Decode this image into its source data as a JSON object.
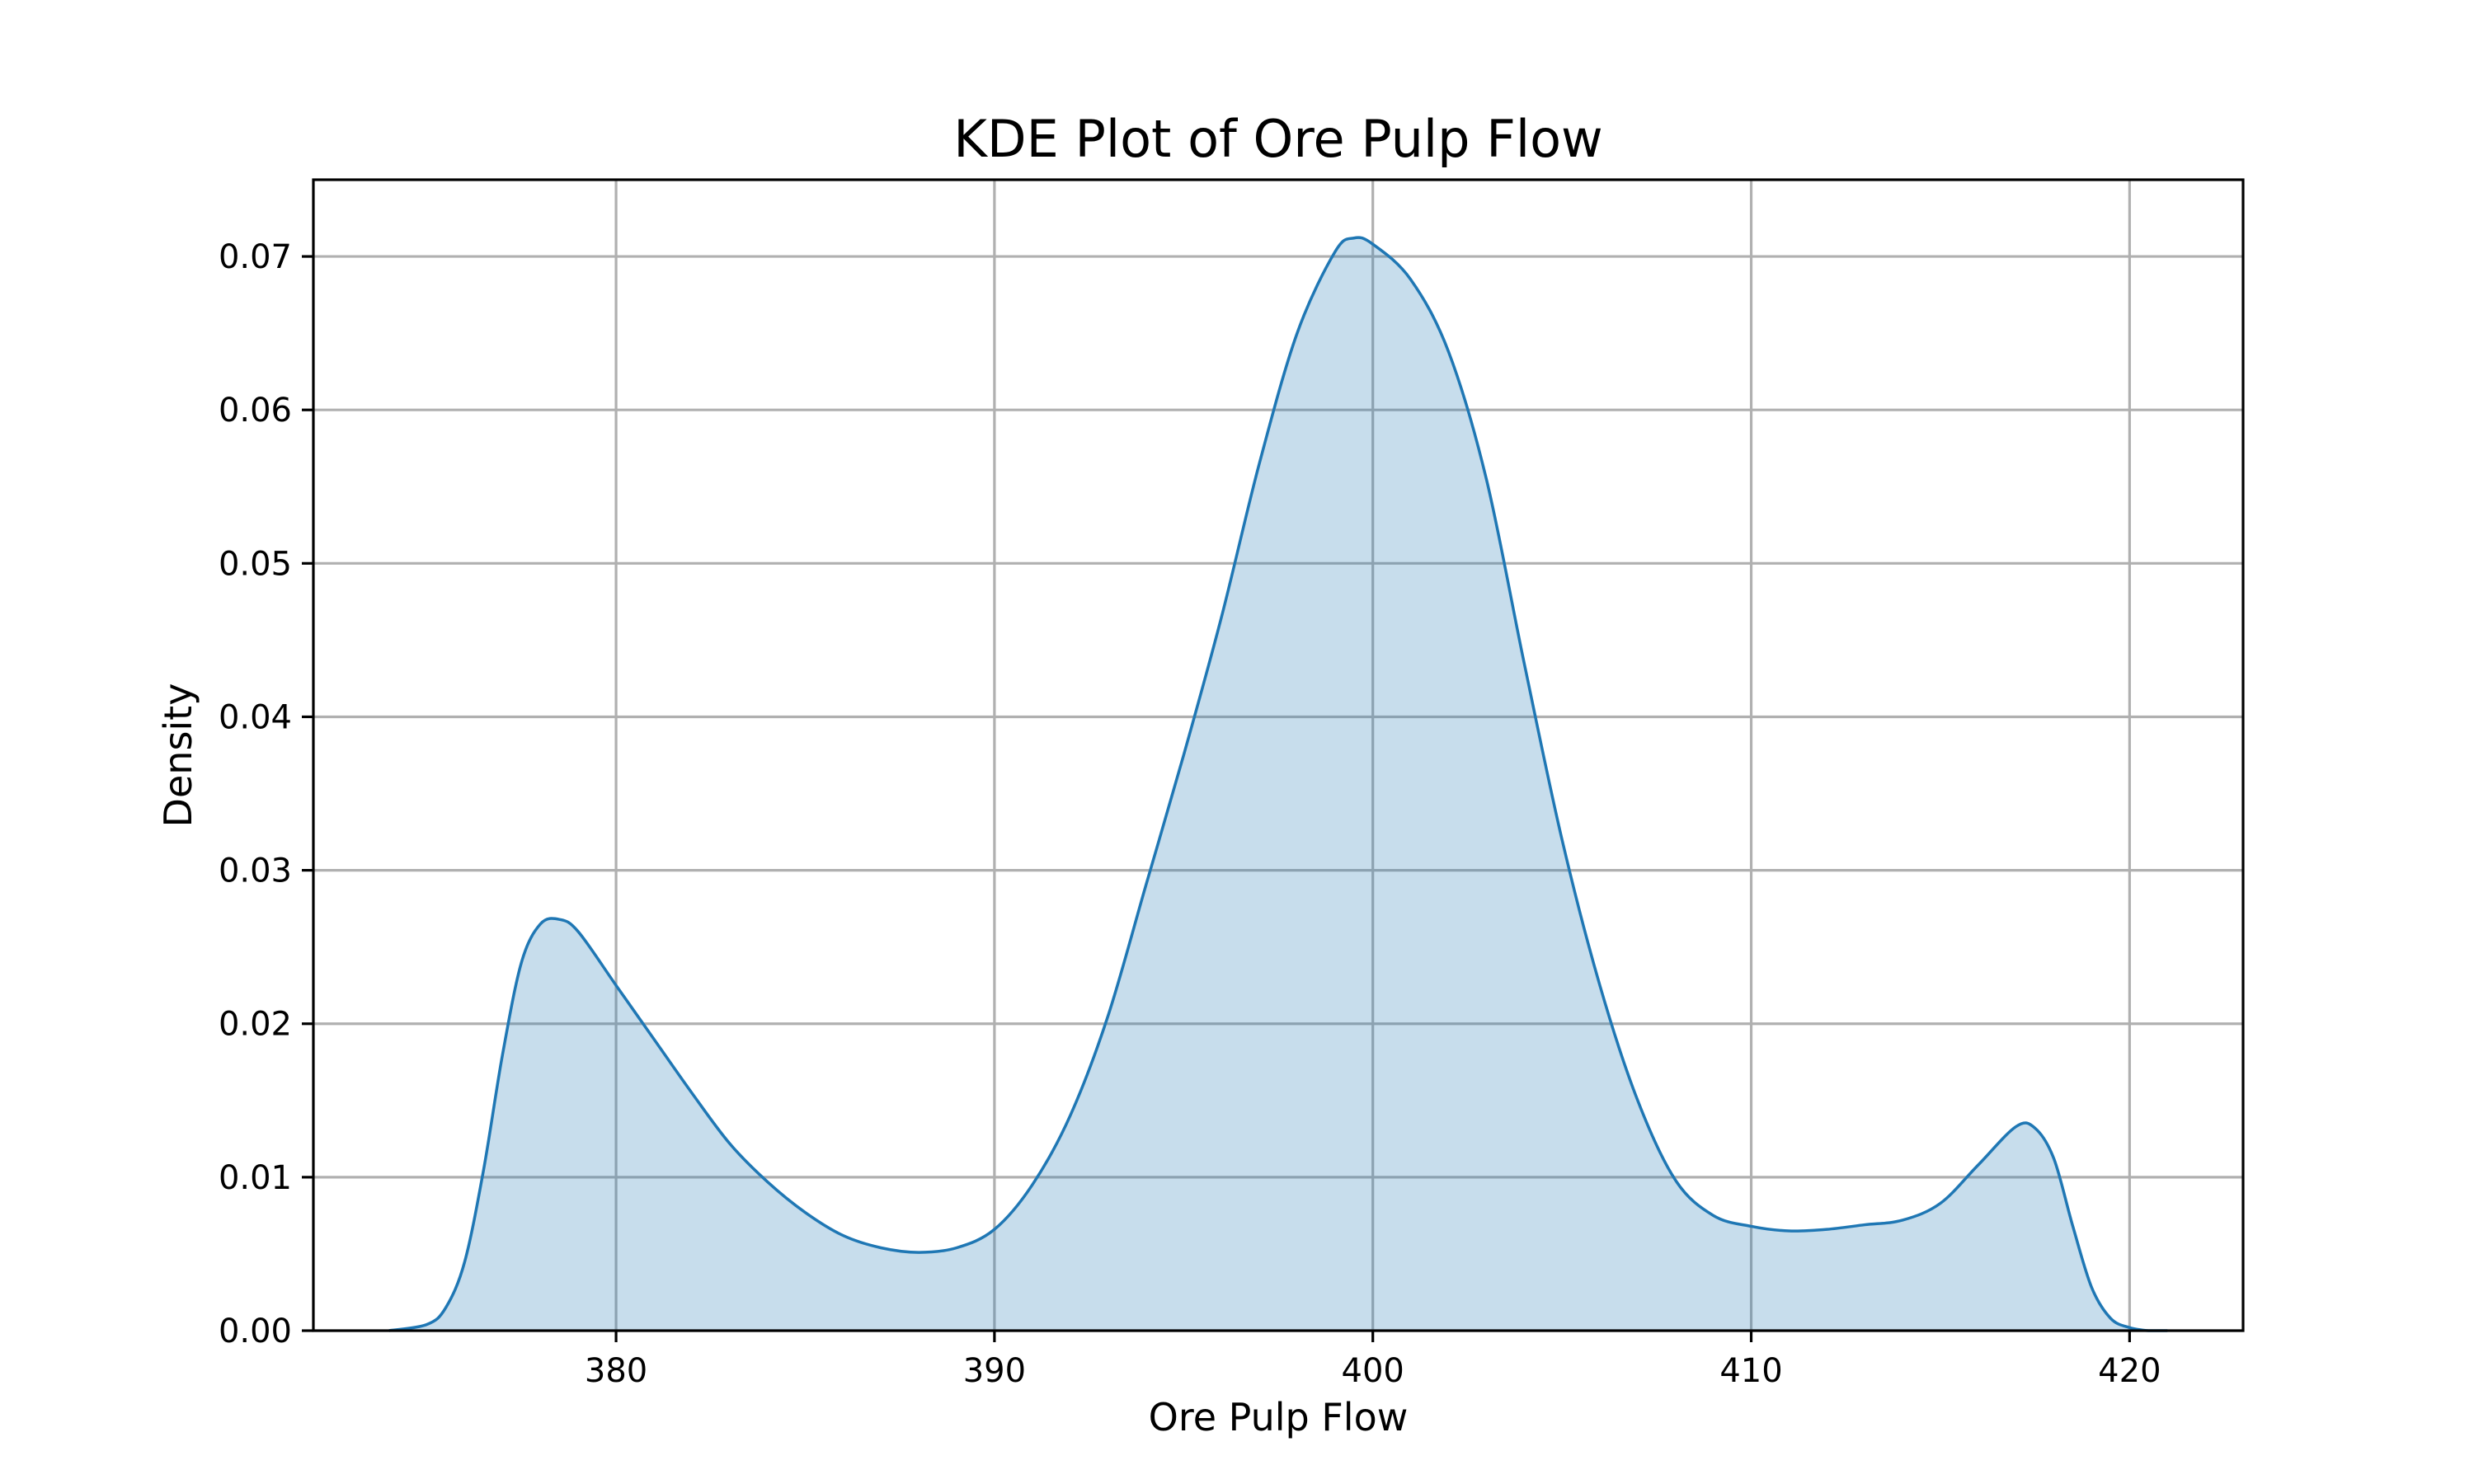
{
  "chart_data": {
    "type": "area",
    "title": "KDE Plot of Ore Pulp Flow",
    "xlabel": "Ore Pulp Flow",
    "ylabel": "Density",
    "xlim": [
      372,
      423
    ],
    "ylim": [
      0,
      0.075
    ],
    "xticks": [
      380,
      390,
      400,
      410,
      420
    ],
    "xtick_labels": [
      "380",
      "390",
      "400",
      "410",
      "420"
    ],
    "yticks": [
      0,
      0.01,
      0.02,
      0.03,
      0.04,
      0.05,
      0.06,
      0.07
    ],
    "ytick_labels": [
      "0.00",
      "0.01",
      "0.02",
      "0.03",
      "0.04",
      "0.05",
      "0.06",
      "0.07"
    ],
    "grid": true,
    "line_color": "#1f77b4",
    "fill_color": "#1f77b4",
    "fill_alpha": 0.25,
    "series": [
      {
        "x": [
          374.0,
          375.0,
          375.5,
          376.0,
          376.5,
          377.0,
          377.5,
          378.0,
          378.5,
          379.0,
          380.0,
          381.0,
          382.0,
          383.0,
          384.0,
          385.0,
          386.0,
          387.0,
          388.0,
          389.0,
          390.0,
          391.0,
          392.0,
          393.0,
          394.0,
          395.0,
          396.0,
          397.0,
          398.0,
          399.0,
          399.5,
          400.0,
          401.0,
          402.0,
          403.0,
          404.0,
          405.0,
          406.0,
          407.0,
          408.0,
          409.0,
          410.0,
          411.0,
          412.0,
          413.0,
          414.0,
          415.0,
          416.0,
          417.0,
          417.5,
          418.0,
          418.5,
          419.0,
          419.5,
          420.0,
          420.5,
          421.0
        ],
        "y": [
          0.0,
          0.0004,
          0.0015,
          0.0045,
          0.0105,
          0.018,
          0.024,
          0.0265,
          0.0268,
          0.026,
          0.0225,
          0.019,
          0.0155,
          0.0122,
          0.0097,
          0.0077,
          0.0062,
          0.0054,
          0.0051,
          0.0054,
          0.0066,
          0.0095,
          0.014,
          0.0205,
          0.029,
          0.0375,
          0.0465,
          0.0565,
          0.065,
          0.0703,
          0.0712,
          0.0708,
          0.0685,
          0.0638,
          0.0555,
          0.0435,
          0.032,
          0.0225,
          0.015,
          0.0098,
          0.0075,
          0.0068,
          0.0065,
          0.0066,
          0.0069,
          0.0072,
          0.0083,
          0.0108,
          0.0133,
          0.0132,
          0.0112,
          0.0068,
          0.0028,
          0.0008,
          0.0002,
          0.0,
          0.0
        ]
      }
    ]
  }
}
